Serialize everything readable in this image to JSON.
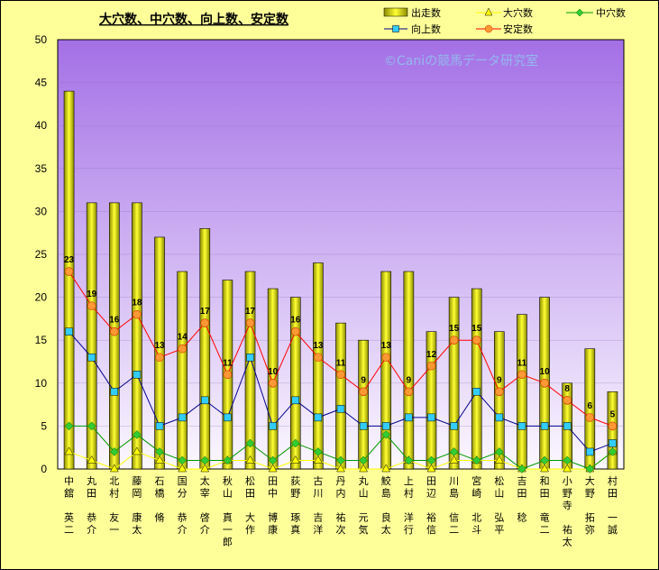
{
  "chart_data": {
    "type": "bar",
    "title": "大穴数、中穴数、向上数、安定数",
    "watermark": "©Caniの競馬データ研究室",
    "ylim": [
      0,
      50
    ],
    "yticks": [
      0,
      5,
      10,
      15,
      20,
      25,
      30,
      35,
      40,
      45,
      50
    ],
    "categories": [
      [
        "中",
        "舘",
        "",
        "英",
        "二"
      ],
      [
        "丸",
        "田",
        "",
        "恭",
        "介"
      ],
      [
        "北",
        "村",
        "",
        "友",
        "一"
      ],
      [
        "藤",
        "岡",
        "",
        "康",
        "太"
      ],
      [
        "石",
        "橋",
        "",
        "脩"
      ],
      [
        "国",
        "分",
        "",
        "恭",
        "介"
      ],
      [
        "太",
        "宰",
        "",
        "啓",
        "介"
      ],
      [
        "秋",
        "山",
        "",
        "真",
        "一",
        "郎"
      ],
      [
        "松",
        "田",
        "",
        "大",
        "作"
      ],
      [
        "田",
        "中",
        "",
        "博",
        "康"
      ],
      [
        "荻",
        "野",
        "",
        "琢",
        "真"
      ],
      [
        "古",
        "川",
        "",
        "吉",
        "洋"
      ],
      [
        "丹",
        "内",
        "",
        "祐",
        "次"
      ],
      [
        "丸",
        "山",
        "",
        "元",
        "気"
      ],
      [
        "鮫",
        "島",
        "",
        "良",
        "太"
      ],
      [
        "上",
        "村",
        "",
        "洋",
        "行"
      ],
      [
        "田",
        "辺",
        "",
        "裕",
        "信"
      ],
      [
        "川",
        "島",
        "",
        "信",
        "二"
      ],
      [
        "宮",
        "崎",
        "",
        "北",
        "斗"
      ],
      [
        "松",
        "山",
        "",
        "弘",
        "平"
      ],
      [
        "吉",
        "田",
        "",
        "稔"
      ],
      [
        "和",
        "田",
        "",
        "竜",
        "二"
      ],
      [
        "小",
        "野",
        "寺",
        "",
        "祐",
        "太"
      ],
      [
        "大",
        "野",
        "",
        "拓",
        "弥"
      ],
      [
        "村",
        "田",
        "",
        "一",
        "誠"
      ]
    ],
    "series": [
      {
        "name": "出走数",
        "type": "bar",
        "color": "#e6e600",
        "values": [
          44,
          31,
          31,
          31,
          27,
          23,
          28,
          22,
          23,
          21,
          20,
          24,
          17,
          15,
          23,
          23,
          16,
          20,
          21,
          16,
          18,
          20,
          10,
          14,
          9
        ]
      },
      {
        "name": "大穴数",
        "type": "line",
        "color": "#ffff00",
        "marker": "triangle",
        "values": [
          2,
          1,
          0,
          2,
          1,
          0,
          0,
          1,
          1,
          0,
          1,
          1,
          0,
          0,
          0,
          1,
          0,
          1,
          1,
          1,
          0,
          0,
          0,
          0,
          2
        ]
      },
      {
        "name": "中穴数",
        "type": "line",
        "color": "#009900",
        "marker": "diamond",
        "values": [
          5,
          5,
          2,
          4,
          2,
          1,
          1,
          1,
          3,
          1,
          3,
          2,
          1,
          1,
          4,
          1,
          1,
          2,
          1,
          2,
          0,
          1,
          1,
          0,
          2
        ]
      },
      {
        "name": "向上数",
        "type": "line",
        "color": "#00008b",
        "marker": "square",
        "values": [
          16,
          13,
          9,
          11,
          5,
          6,
          8,
          6,
          13,
          5,
          8,
          6,
          7,
          5,
          5,
          6,
          6,
          5,
          9,
          6,
          5,
          5,
          5,
          2,
          3
        ]
      },
      {
        "name": "安定数",
        "type": "line",
        "color": "#ff0000",
        "marker": "circle",
        "values": [
          23,
          19,
          16,
          18,
          13,
          14,
          17,
          11,
          17,
          10,
          16,
          13,
          11,
          9,
          13,
          9,
          12,
          15,
          15,
          9,
          11,
          10,
          8,
          6,
          5
        ]
      }
    ]
  }
}
